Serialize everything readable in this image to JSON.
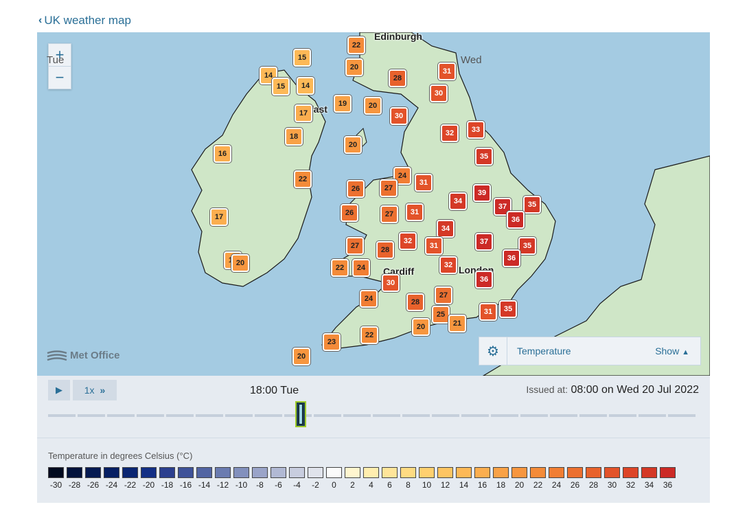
{
  "back_link": {
    "label": "UK weather map"
  },
  "zoom": {
    "in_label": "+",
    "out_label": "−"
  },
  "cities": [
    {
      "name": "Edinburgh"
    },
    {
      "name": "fast"
    },
    {
      "name": "Cardiff"
    },
    {
      "name": "London"
    }
  ],
  "markers": [
    15,
    22,
    14,
    15,
    14,
    20,
    28,
    31,
    19,
    20,
    17,
    30,
    30,
    18,
    32,
    33,
    20,
    16,
    35,
    22,
    24,
    26,
    27,
    31,
    39,
    34,
    37,
    35,
    17,
    26,
    27,
    31,
    36,
    34,
    32,
    31,
    37,
    27,
    28,
    35,
    18,
    20,
    36,
    22,
    24,
    32,
    30,
    36,
    24,
    28,
    27,
    25,
    21,
    31,
    35,
    20,
    23,
    22,
    20
  ],
  "logo": {
    "text": "Met Office"
  },
  "layer_panel": {
    "icon": "gear-icon",
    "layer_name": "Temperature",
    "toggle_label": "Show"
  },
  "controls": {
    "play_icon": "play-icon",
    "speed_label": "1x",
    "speed_icon": "fast-forward-icon",
    "current_time": "18:00 Tue",
    "issued_label": "Issued at:",
    "issued_value": "08:00 on Wed 20 Jul 2022",
    "day_labels": [
      "Tue",
      "Wed"
    ],
    "timeline_position": 0.39
  },
  "legend": {
    "title": "Temperature in degrees Celsius (°C)",
    "scale": [
      {
        "value": "-30",
        "color": "#000a1f"
      },
      {
        "value": "-28",
        "color": "#02123b"
      },
      {
        "value": "-26",
        "color": "#041a52"
      },
      {
        "value": "-24",
        "color": "#061f63"
      },
      {
        "value": "-22",
        "color": "#0a2673"
      },
      {
        "value": "-20",
        "color": "#132f85"
      },
      {
        "value": "-18",
        "color": "#2b3f8f"
      },
      {
        "value": "-16",
        "color": "#3e5299"
      },
      {
        "value": "-14",
        "color": "#5265a3"
      },
      {
        "value": "-12",
        "color": "#6a7bb0"
      },
      {
        "value": "-10",
        "color": "#8290bd"
      },
      {
        "value": "-8",
        "color": "#9aa4c9"
      },
      {
        "value": "-6",
        "color": "#b1b9d4"
      },
      {
        "value": "-4",
        "color": "#c8cddf"
      },
      {
        "value": "-2",
        "color": "#e0e3ec"
      },
      {
        "value": "0",
        "color": "#fbfbfb"
      },
      {
        "value": "2",
        "color": "#fff6cf"
      },
      {
        "value": "4",
        "color": "#ffeeaf"
      },
      {
        "value": "6",
        "color": "#ffe59a"
      },
      {
        "value": "8",
        "color": "#ffdb82"
      },
      {
        "value": "10",
        "color": "#ffd06f"
      },
      {
        "value": "12",
        "color": "#fec562"
      },
      {
        "value": "14",
        "color": "#fdb957"
      },
      {
        "value": "16",
        "color": "#fbae4f"
      },
      {
        "value": "18",
        "color": "#f9a247"
      },
      {
        "value": "20",
        "color": "#f7963f"
      },
      {
        "value": "22",
        "color": "#f48b39"
      },
      {
        "value": "24",
        "color": "#f17e34"
      },
      {
        "value": "26",
        "color": "#ec7030"
      },
      {
        "value": "28",
        "color": "#e8622c"
      },
      {
        "value": "30",
        "color": "#e3532a"
      },
      {
        "value": "32",
        "color": "#dd4528"
      },
      {
        "value": "34",
        "color": "#d43826"
      },
      {
        "value": "36",
        "color": "#cc2a26"
      }
    ]
  }
}
